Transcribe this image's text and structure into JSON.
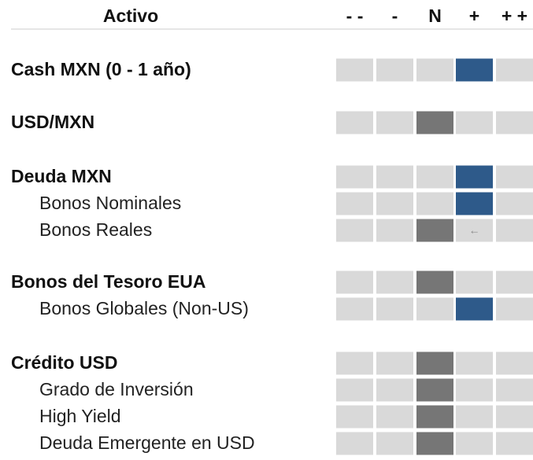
{
  "header": {
    "title": "Activo",
    "columns": [
      "- -",
      "-",
      "N",
      "+",
      "+ +"
    ]
  },
  "rows": [
    {
      "label": "Cash MXN (0 - 1 año)",
      "level": "main",
      "position": 3,
      "tone": "blue"
    },
    {
      "label": "USD/MXN",
      "level": "main",
      "position": 2,
      "tone": "gray"
    },
    {
      "label": "Deuda MXN",
      "level": "main",
      "position": 3,
      "tone": "blue"
    },
    {
      "label": "Bonos Nominales",
      "level": "sub",
      "position": 3,
      "tone": "blue"
    },
    {
      "label": "Bonos Reales",
      "level": "sub",
      "position": 2,
      "tone": "gray",
      "arrow": {
        "text": "←",
        "column": 3
      }
    },
    {
      "label": "Bonos del Tesoro EUA",
      "level": "main",
      "position": 2,
      "tone": "gray"
    },
    {
      "label": "Bonos Globales (Non-US)",
      "level": "sub",
      "position": 3,
      "tone": "blue"
    },
    {
      "label": "Crédito USD",
      "level": "main",
      "position": 2,
      "tone": "gray"
    },
    {
      "label": "Grado de Inversión",
      "level": "sub",
      "position": 2,
      "tone": "gray"
    },
    {
      "label": "High Yield",
      "level": "sub",
      "position": 2,
      "tone": "gray"
    },
    {
      "label": "Deuda Emergente en USD",
      "level": "sub",
      "position": 2,
      "tone": "gray"
    }
  ]
}
